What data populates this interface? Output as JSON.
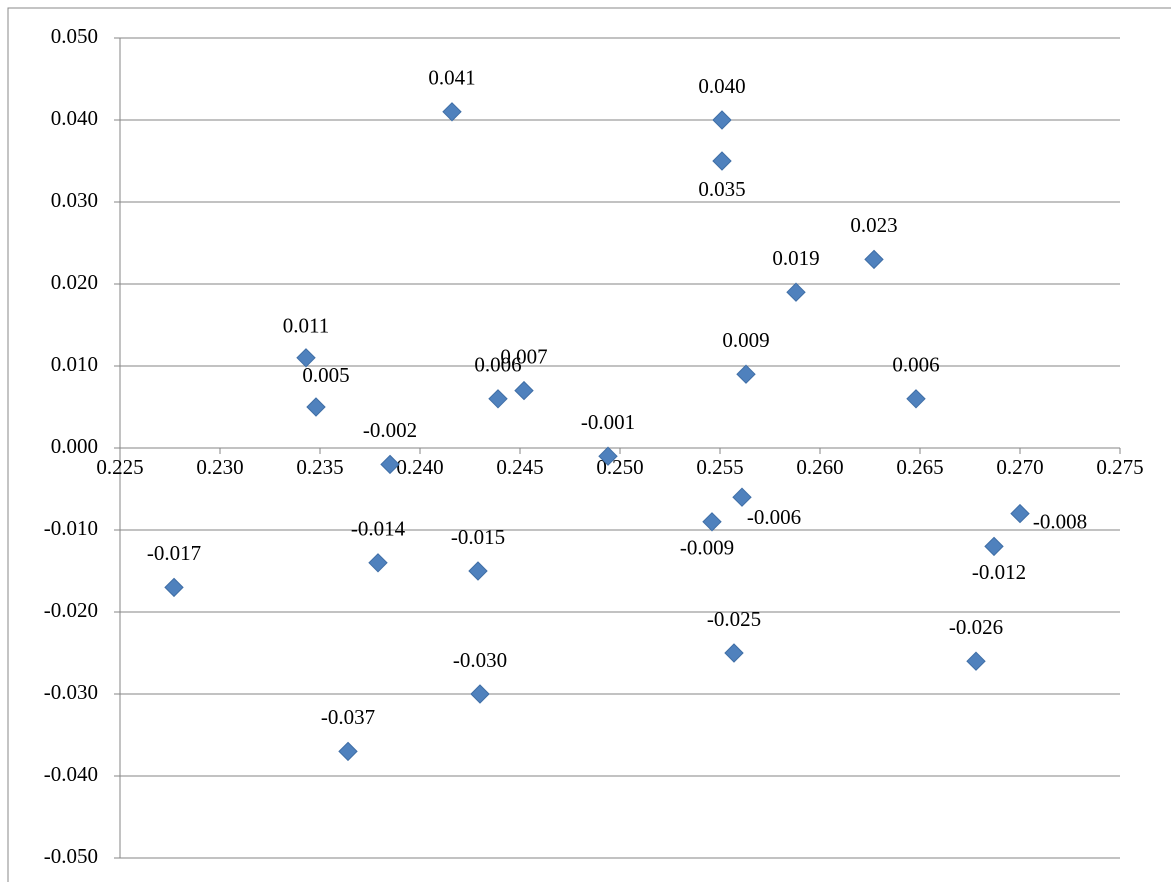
{
  "chart_data": {
    "type": "scatter",
    "x": [
      0.2277,
      0.2343,
      0.2348,
      0.2364,
      0.2379,
      0.2385,
      0.2416,
      0.2429,
      0.243,
      0.2439,
      0.2452,
      0.2494,
      0.2546,
      0.2551,
      0.2551,
      0.2557,
      0.2561,
      0.2563,
      0.2588,
      0.2627,
      0.2648,
      0.2678,
      0.2687,
      0.27
    ],
    "values": [
      -0.017,
      0.011,
      0.005,
      -0.037,
      -0.014,
      -0.002,
      0.041,
      -0.015,
      -0.03,
      0.006,
      0.007,
      -0.001,
      -0.009,
      0.04,
      0.035,
      -0.025,
      -0.006,
      0.009,
      0.019,
      0.023,
      0.006,
      -0.026,
      -0.012,
      -0.008
    ],
    "value_labels": [
      "-0.017",
      "0.011",
      "0.005",
      "-0.037",
      "-0.014",
      "-0.002",
      "0.041",
      "-0.015",
      "-0.030",
      "0.006",
      "0.007",
      "-0.001",
      "-0.009",
      "0.040",
      "0.035",
      "-0.025",
      "-0.006",
      "0.009",
      "0.019",
      "0.023",
      "0.006",
      "-0.026",
      "-0.012",
      "-0.008"
    ],
    "color": "#4f81bd",
    "xlim": [
      0.225,
      0.275
    ],
    "xticks": [
      {
        "value": 0.225,
        "label": "0.225"
      },
      {
        "value": 0.23,
        "label": "0.230"
      },
      {
        "value": 0.235,
        "label": "0.235"
      },
      {
        "value": 0.24,
        "label": "0.240"
      },
      {
        "value": 0.245,
        "label": "0.245"
      },
      {
        "value": 0.25,
        "label": "0.250"
      },
      {
        "value": 0.255,
        "label": "0.255"
      },
      {
        "value": 0.26,
        "label": "0.260"
      },
      {
        "value": 0.265,
        "label": "0.265"
      },
      {
        "value": 0.27,
        "label": "0.270"
      },
      {
        "value": 0.275,
        "label": "0.275"
      }
    ],
    "ylim": [
      -0.05,
      0.05
    ],
    "yticks": [
      {
        "value": -0.05,
        "label": "-0.050"
      },
      {
        "value": -0.04,
        "label": "-0.040"
      },
      {
        "value": -0.03,
        "label": "-0.030"
      },
      {
        "value": -0.02,
        "label": "-0.020"
      },
      {
        "value": -0.01,
        "label": "-0.010"
      },
      {
        "value": 0,
        "label": "0.000"
      },
      {
        "value": 0.01,
        "label": "0.010"
      },
      {
        "value": 0.02,
        "label": "0.020"
      },
      {
        "value": 0.03,
        "label": "0.030"
      },
      {
        "value": 0.04,
        "label": "0.040"
      },
      {
        "value": 0.05,
        "label": "0.050"
      }
    ],
    "grid": true
  }
}
